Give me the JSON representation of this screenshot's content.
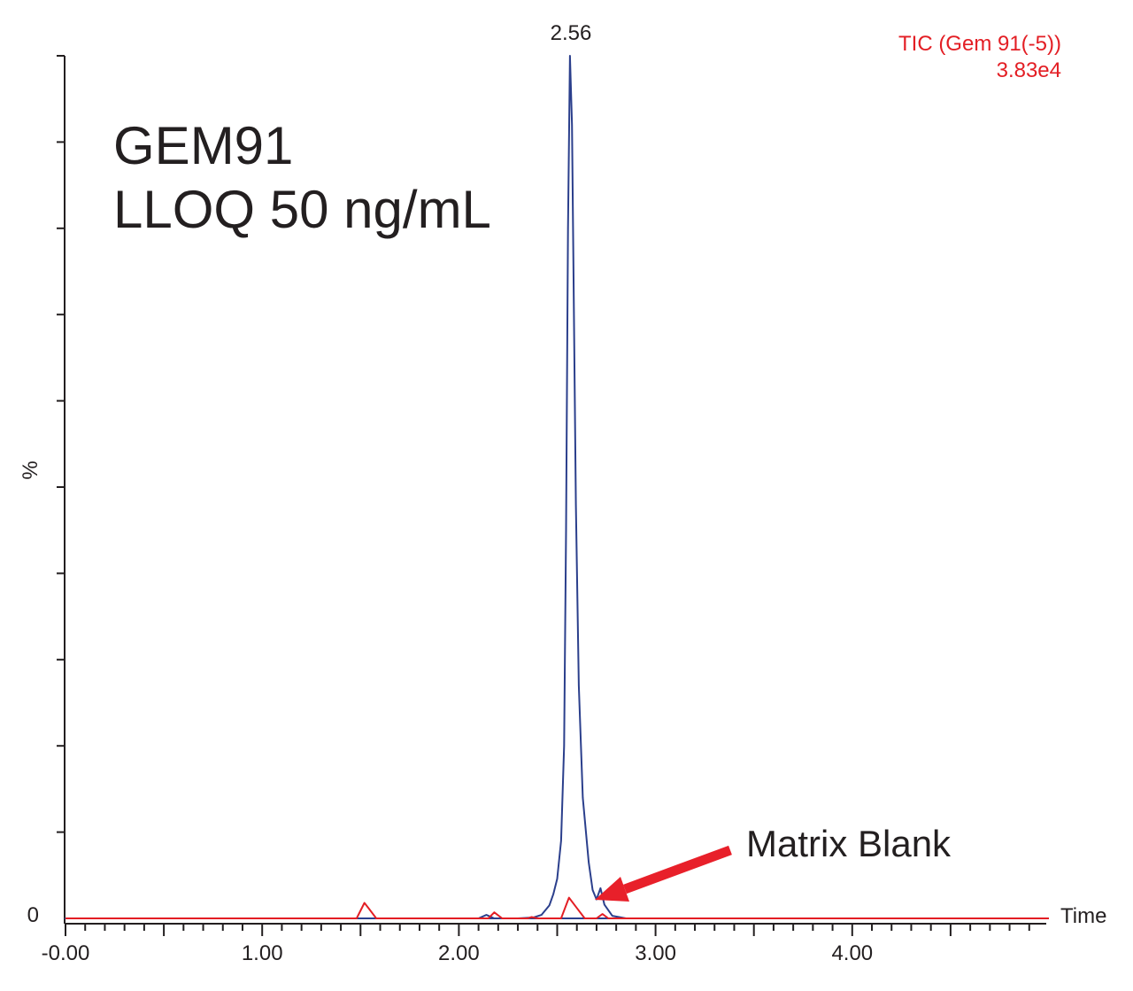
{
  "chart_data": {
    "type": "line",
    "title": "",
    "xlabel": "Time",
    "ylabel": "%",
    "xlim": [
      0,
      5
    ],
    "ylim": [
      0,
      100
    ],
    "x_ticks": [
      {
        "value": 0,
        "label": "-0.00"
      },
      {
        "value": 1,
        "label": "1.00"
      },
      {
        "value": 2,
        "label": "2.00"
      },
      {
        "value": 3,
        "label": "3.00"
      },
      {
        "value": 4,
        "label": "4.00"
      }
    ],
    "y_ticks": [
      {
        "value": 0,
        "label": "0"
      }
    ],
    "y_minor_ticks": [
      10,
      20,
      30,
      40,
      50,
      60,
      70,
      80,
      90,
      100
    ],
    "trace_info": {
      "name": "TIC (Gem 91(-5))",
      "intensity": "3.83e4",
      "color": "#e31e24"
    },
    "annotations": {
      "compound": "GEM91",
      "lloq": "LLOQ 50 ng/mL",
      "matrix_blank": "Matrix Blank",
      "arrow_color": "#e8202a",
      "peak_label": "2.56"
    },
    "series": [
      {
        "color": "#2b3f8c",
        "x": [
          0,
          2.1,
          2.14,
          2.18,
          2.3,
          2.38,
          2.42,
          2.46,
          2.48,
          2.5,
          2.52,
          2.535,
          2.545,
          2.555,
          2.565,
          2.575,
          2.585,
          2.595,
          2.61,
          2.63,
          2.66,
          2.68,
          2.7,
          2.72,
          2.74,
          2.78,
          2.85,
          5.0
        ],
        "y": [
          0,
          0,
          0.4,
          0,
          0,
          0.1,
          0.4,
          1.5,
          2.8,
          4.6,
          9.0,
          20.0,
          45.0,
          80.0,
          100,
          92.0,
          70.0,
          48.0,
          27.0,
          14.0,
          6.5,
          3.3,
          2.2,
          3.5,
          1.6,
          0.3,
          0,
          0
        ]
      },
      {
        "color": "#e31e24",
        "x": [
          0,
          1.48,
          1.52,
          1.54,
          1.58,
          2.15,
          2.18,
          2.22,
          2.35,
          2.37,
          2.4,
          2.52,
          2.56,
          2.6,
          2.64,
          2.7,
          2.73,
          2.76,
          5.0
        ],
        "y": [
          0,
          0,
          1.8,
          1.2,
          0,
          0,
          0.7,
          0,
          0,
          0.15,
          0,
          0,
          2.4,
          1.2,
          0,
          0,
          0.5,
          0,
          0
        ]
      }
    ]
  }
}
